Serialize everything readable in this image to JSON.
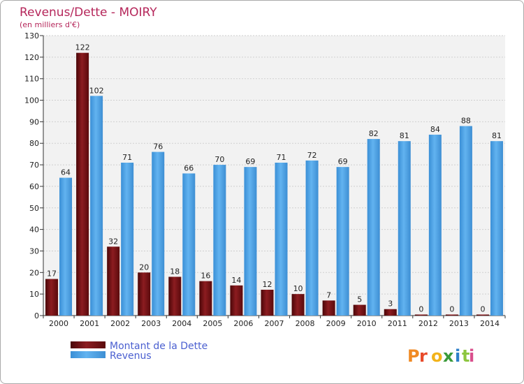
{
  "chart_data": {
    "type": "bar",
    "title": "Revenus/Dette - MOIRY",
    "subtitle": "(en milliers d'€)",
    "categories": [
      "2000",
      "2001",
      "2002",
      "2003",
      "2004",
      "2005",
      "2006",
      "2007",
      "2008",
      "2009",
      "2010",
      "2011",
      "2012",
      "2013",
      "2014"
    ],
    "series": [
      {
        "name": "Montant de la Dette",
        "color": "#7a1216",
        "values": [
          17,
          122,
          32,
          20,
          18,
          16,
          14,
          12,
          10,
          7,
          5,
          3,
          0,
          0,
          0
        ]
      },
      {
        "name": "Revenus",
        "color": "#4fa3e6",
        "values": [
          64,
          102,
          71,
          76,
          66,
          70,
          69,
          71,
          72,
          69,
          82,
          81,
          84,
          88,
          81
        ]
      }
    ],
    "ylim": [
      0,
      130
    ],
    "yticks": [
      0,
      10,
      20,
      30,
      40,
      50,
      60,
      70,
      80,
      90,
      100,
      110,
      120,
      130
    ],
    "grid": true,
    "legend_position": "bottom-left",
    "watermark": "Proxiti"
  }
}
